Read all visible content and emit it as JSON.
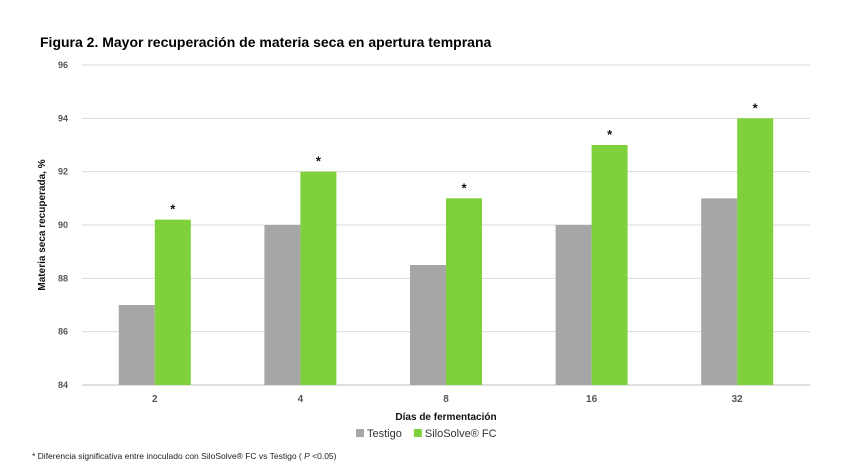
{
  "title": "Figura 2. Mayor recuperación de materia seca en apertura temprana",
  "footnote": {
    "prefix": "* Diferencia significativa entre inoculado con SiloSolve®  FC vs Testigo ( ",
    "p": "P",
    "suffix": " <0.05)"
  },
  "chart_data": {
    "type": "bar",
    "title": "Figura 2. Mayor recuperación de materia seca en apertura temprana",
    "xlabel": "Días de fermentación",
    "ylabel": "Materia seca recuperada, %",
    "categories": [
      "2",
      "4",
      "8",
      "16",
      "32"
    ],
    "series": [
      {
        "name": "Testigo",
        "color": "#a6a6a6",
        "values": [
          87.0,
          90.0,
          88.5,
          90.0,
          91.0
        ]
      },
      {
        "name": "SiloSolve® FC",
        "color": "#7fd13b",
        "values": [
          90.2,
          92.0,
          91.0,
          93.0,
          94.0
        ]
      }
    ],
    "significance_marker": "*",
    "significant": [
      true,
      true,
      true,
      true,
      true
    ],
    "ylim": [
      84,
      96
    ],
    "yticks": [
      84,
      86,
      88,
      90,
      92,
      94,
      96
    ],
    "grid": true,
    "legend": "bottom"
  }
}
